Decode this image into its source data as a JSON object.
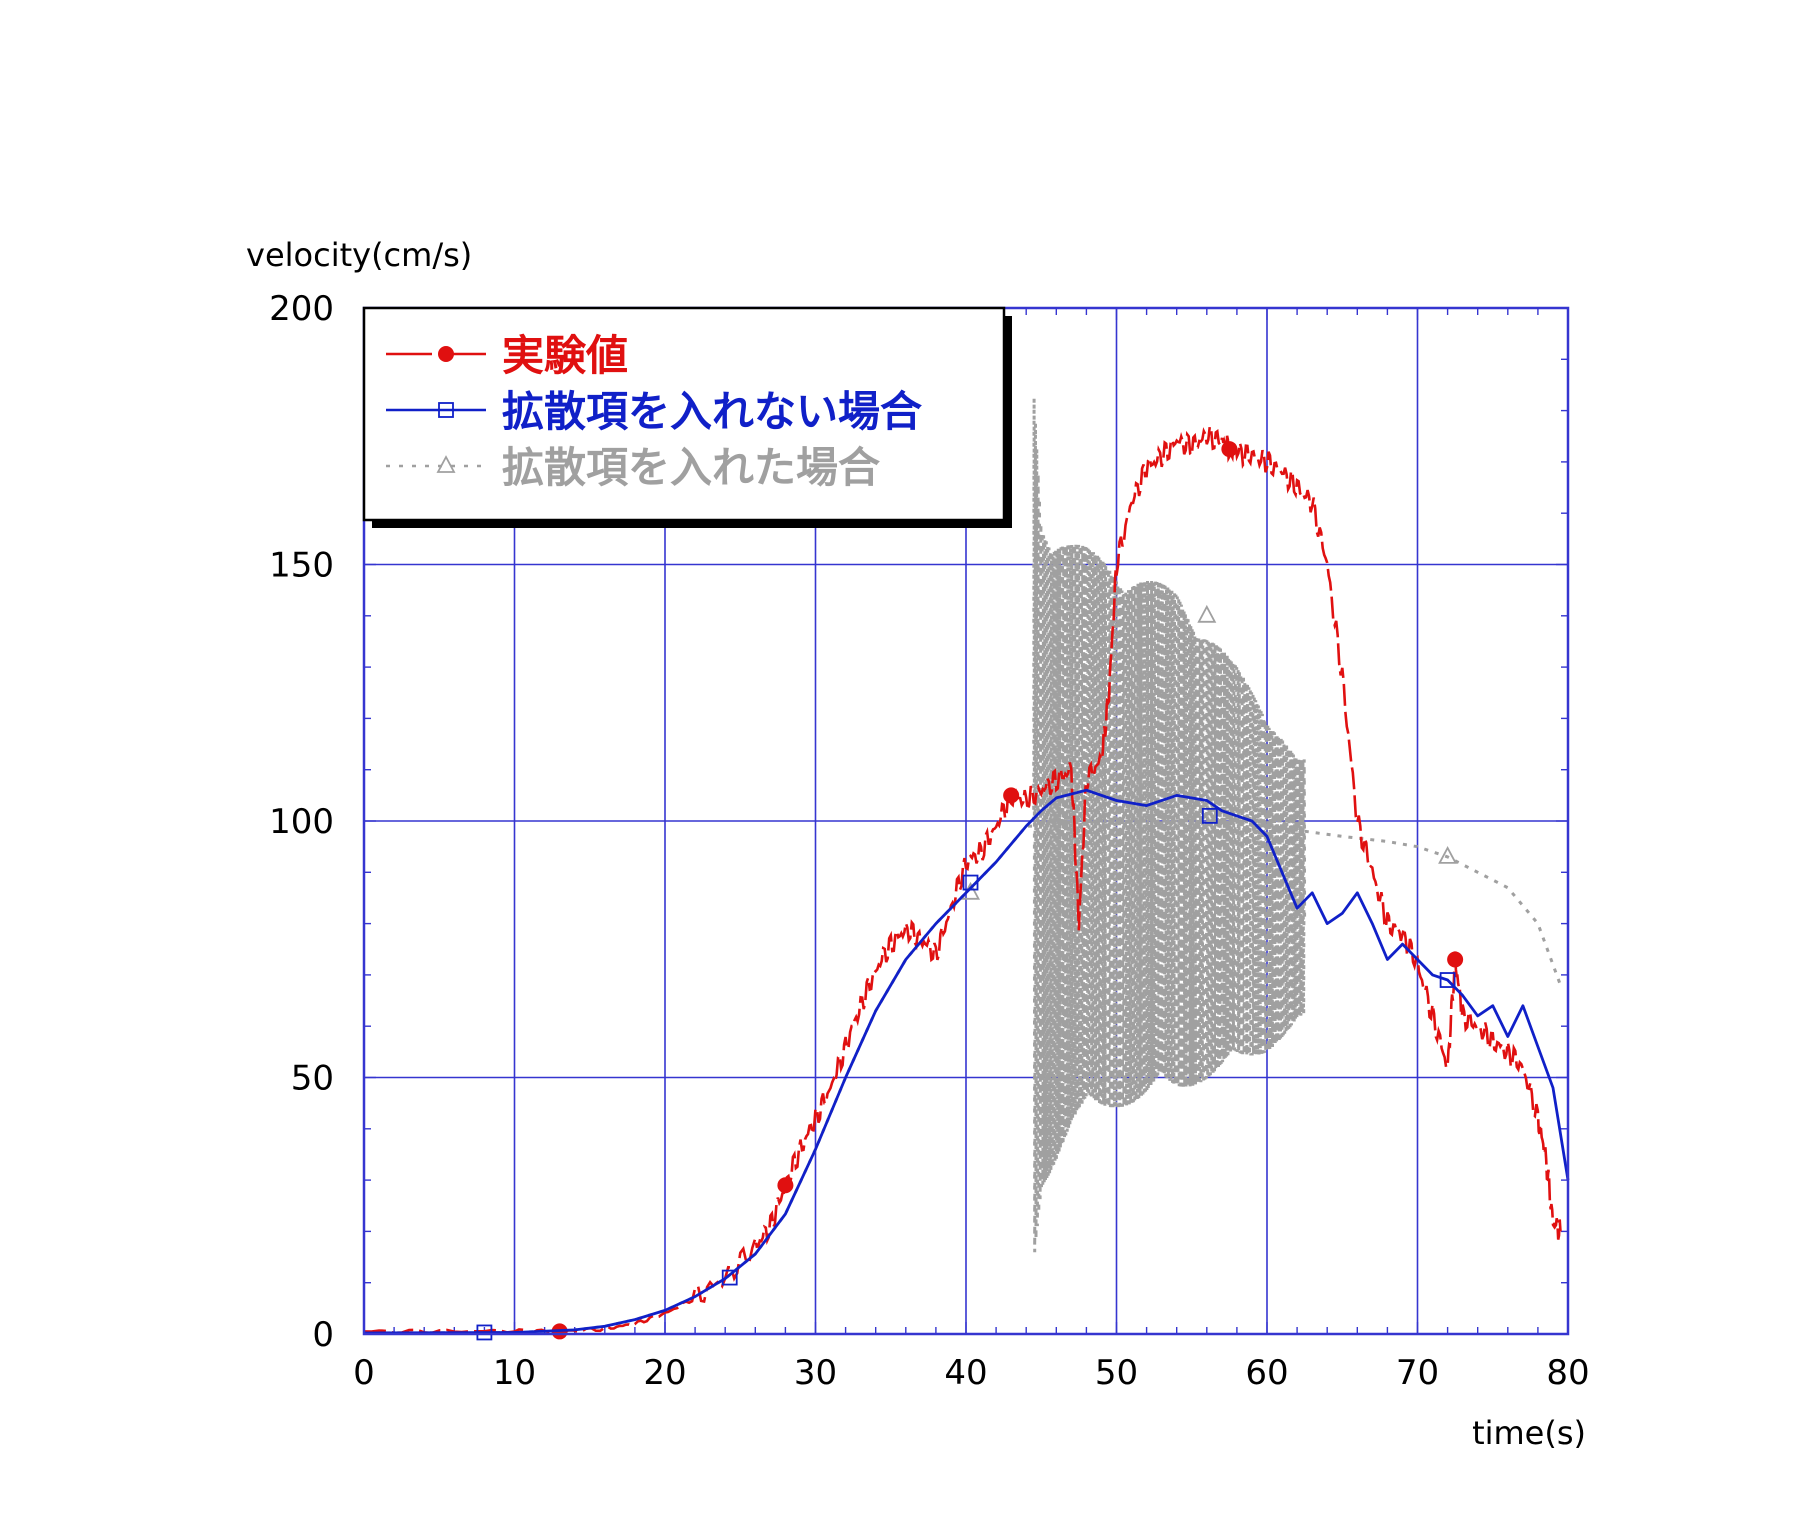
{
  "chart_data": {
    "type": "line",
    "ylabel": "velocity(cm/s)",
    "xlabel": "time(s)",
    "xlim": [
      0,
      80
    ],
    "ylim": [
      0,
      200
    ],
    "xticks": [
      0,
      10,
      20,
      30,
      40,
      50,
      60,
      70,
      80
    ],
    "yticks": [
      0,
      50,
      100,
      150,
      200
    ],
    "grid": true,
    "legend_position": "top-left",
    "colors": {
      "frame": "#3535d0",
      "grid": "#3535d0"
    },
    "series": [
      {
        "name": "実験値",
        "color": "#e01010",
        "style": "dashed",
        "marker": "filled-circle",
        "markers": [
          [
            13,
            0.5
          ],
          [
            28,
            29
          ],
          [
            43,
            105
          ],
          [
            57.5,
            172.5
          ],
          [
            72.5,
            73
          ]
        ],
        "points": [
          [
            0,
            0.5
          ],
          [
            5,
            0.5
          ],
          [
            10,
            0.6
          ],
          [
            13,
            0.5
          ],
          [
            16,
            1
          ],
          [
            18,
            2
          ],
          [
            20,
            4
          ],
          [
            22,
            7
          ],
          [
            24,
            11
          ],
          [
            26,
            17
          ],
          [
            27,
            21
          ],
          [
            28,
            29
          ],
          [
            29,
            36
          ],
          [
            30,
            42
          ],
          [
            31,
            48
          ],
          [
            32,
            56
          ],
          [
            33,
            64
          ],
          [
            34,
            71
          ],
          [
            35,
            76
          ],
          [
            36,
            79
          ],
          [
            37,
            77
          ],
          [
            38,
            74
          ],
          [
            39,
            83
          ],
          [
            40,
            92
          ],
          [
            41,
            94
          ],
          [
            42,
            99
          ],
          [
            43,
            105
          ],
          [
            44,
            104
          ],
          [
            45,
            106
          ],
          [
            46,
            108
          ],
          [
            47,
            110
          ],
          [
            47.5,
            80
          ],
          [
            48,
            108
          ],
          [
            49,
            112
          ],
          [
            49.5,
            125
          ],
          [
            50,
            150
          ],
          [
            51,
            162
          ],
          [
            52,
            169
          ],
          [
            53,
            171
          ],
          [
            54,
            174
          ],
          [
            55,
            173
          ],
          [
            56,
            175
          ],
          [
            57,
            174
          ],
          [
            57.5,
            172.5
          ],
          [
            58,
            172
          ],
          [
            59,
            171
          ],
          [
            60,
            170
          ],
          [
            61,
            168
          ],
          [
            62,
            165
          ],
          [
            63,
            162
          ],
          [
            64,
            150
          ],
          [
            65,
            128
          ],
          [
            66,
            100
          ],
          [
            67,
            90
          ],
          [
            68,
            80
          ],
          [
            69,
            78
          ],
          [
            70,
            72
          ],
          [
            71,
            62
          ],
          [
            72,
            52
          ],
          [
            72.5,
            73
          ],
          [
            73,
            62
          ],
          [
            74,
            60
          ],
          [
            75,
            57
          ],
          [
            76,
            55
          ],
          [
            77,
            52
          ],
          [
            78,
            42
          ],
          [
            78.5,
            35
          ],
          [
            79,
            22
          ],
          [
            79.5,
            20
          ]
        ]
      },
      {
        "name": "拡散項を入れない場合",
        "color": "#1020c8",
        "style": "solid",
        "marker": "open-square",
        "markers": [
          [
            8,
            0.3
          ],
          [
            24.3,
            11
          ],
          [
            40.3,
            88
          ],
          [
            56.2,
            101
          ],
          [
            72,
            69
          ]
        ],
        "points": [
          [
            0,
            0.2
          ],
          [
            10,
            0.3
          ],
          [
            14,
            0.8
          ],
          [
            16,
            1.5
          ],
          [
            18,
            2.8
          ],
          [
            20,
            4.6
          ],
          [
            22,
            7.3
          ],
          [
            24,
            10.8
          ],
          [
            26,
            15.6
          ],
          [
            28,
            23.4
          ],
          [
            30,
            36
          ],
          [
            32,
            50
          ],
          [
            34,
            63
          ],
          [
            36,
            73
          ],
          [
            38,
            80
          ],
          [
            40,
            86
          ],
          [
            42,
            92
          ],
          [
            44,
            99
          ],
          [
            45,
            102
          ],
          [
            46,
            104.5
          ],
          [
            48,
            106
          ],
          [
            50,
            104
          ],
          [
            52,
            103
          ],
          [
            54,
            105
          ],
          [
            56,
            104
          ],
          [
            57,
            102
          ],
          [
            58,
            101
          ],
          [
            59,
            100
          ],
          [
            60,
            97
          ],
          [
            61,
            90
          ],
          [
            62,
            83
          ],
          [
            63,
            86
          ],
          [
            64,
            80
          ],
          [
            65,
            82
          ],
          [
            66,
            86
          ],
          [
            67,
            80
          ],
          [
            68,
            73
          ],
          [
            69,
            76
          ],
          [
            70,
            73
          ],
          [
            71,
            70
          ],
          [
            72,
            69
          ],
          [
            73,
            66
          ],
          [
            74,
            62
          ],
          [
            75,
            64
          ],
          [
            76,
            58
          ],
          [
            77,
            64
          ],
          [
            78,
            56
          ],
          [
            79,
            48
          ],
          [
            80,
            30
          ]
        ]
      },
      {
        "name": "拡散項を入れた場合",
        "color": "#a0a0a0",
        "style": "dotted",
        "marker": "open-triangle",
        "markers": [
          [
            40.3,
            86
          ],
          [
            56,
            140
          ],
          [
            72,
            93
          ]
        ],
        "points": [
          [
            0,
            0.2
          ],
          [
            10,
            0.3
          ],
          [
            14,
            0.8
          ],
          [
            16,
            1.5
          ],
          [
            18,
            2.8
          ],
          [
            20,
            4.6
          ],
          [
            22,
            7.3
          ],
          [
            24,
            10.8
          ],
          [
            26,
            15.6
          ],
          [
            28,
            23.4
          ],
          [
            30,
            36
          ],
          [
            32,
            50
          ],
          [
            34,
            63
          ],
          [
            36,
            73
          ],
          [
            38,
            80
          ],
          [
            40,
            86
          ],
          [
            42,
            92
          ],
          [
            44,
            99
          ],
          [
            45,
            100
          ],
          [
            50,
            100
          ],
          [
            55,
            100
          ],
          [
            60,
            99
          ],
          [
            65,
            97
          ],
          [
            68,
            96
          ],
          [
            70,
            95
          ],
          [
            72,
            93
          ],
          [
            74,
            90
          ],
          [
            76,
            87
          ],
          [
            78,
            80
          ],
          [
            79.5,
            68
          ]
        ],
        "oscillation": {
          "t_start": 44.5,
          "t_end": 62.5,
          "envelope_upper": [
            [
              44.5,
              186
            ],
            [
              45,
              160
            ],
            [
              47,
              155
            ],
            [
              50,
              150
            ],
            [
              54,
              145
            ],
            [
              58,
              130
            ],
            [
              60,
              122
            ],
            [
              62,
              112
            ]
          ],
          "envelope_lower": [
            [
              44.5,
              12
            ],
            [
              45,
              28
            ],
            [
              47,
              40
            ],
            [
              50,
              44
            ],
            [
              54,
              47
            ],
            [
              58,
              52
            ],
            [
              60,
              55
            ],
            [
              62,
              60
            ]
          ]
        }
      }
    ]
  }
}
